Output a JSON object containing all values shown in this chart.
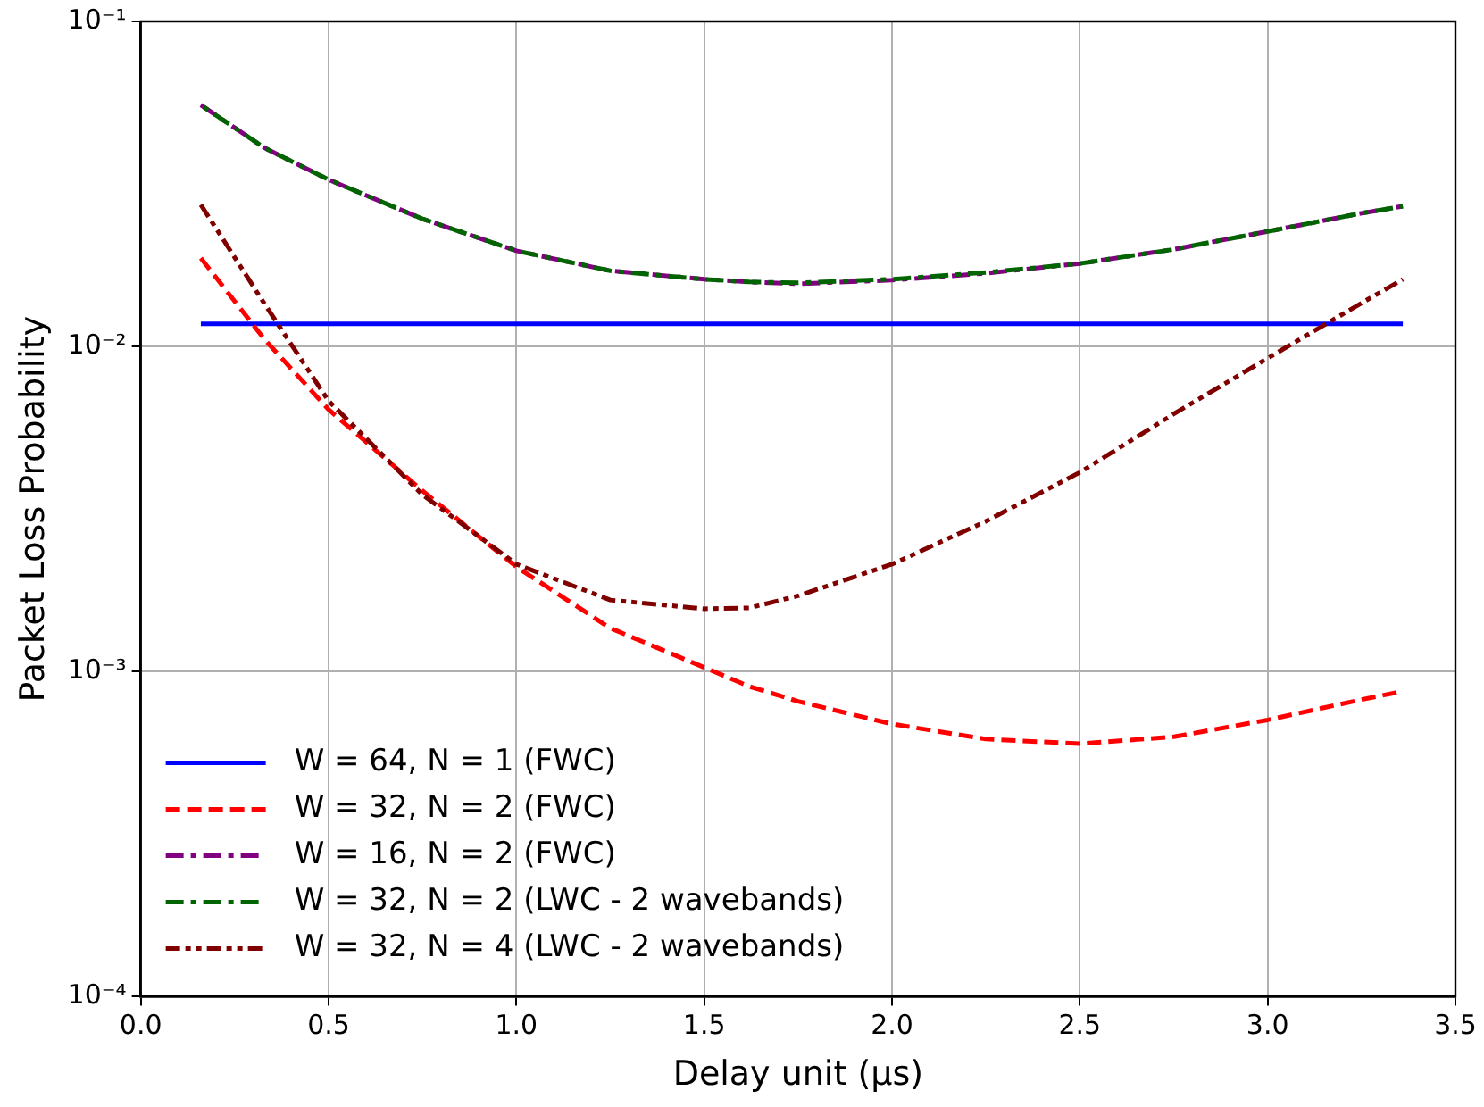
{
  "chart_data": {
    "type": "line",
    "xlabel": "Delay unit (μs)",
    "ylabel": "Packet Loss Probability",
    "log": "y",
    "grid": true,
    "legend": "bottom left",
    "marker": "none",
    "xlim": [
      0,
      3.5
    ],
    "xticks": [
      {
        "value": 0,
        "label": "0.0"
      },
      0.5,
      {
        "value": 1,
        "label": "1.0"
      },
      1.5,
      {
        "value": 2,
        "label": "2.0"
      },
      2.5,
      {
        "value": 3,
        "label": "3.0"
      },
      3.5
    ],
    "ylim": [
      0.0001,
      0.1
    ],
    "yticks": [
      {
        "value": 0.0001,
        "label": "10⁻⁴"
      },
      {
        "value": 0.001,
        "label": "10⁻³"
      },
      {
        "value": 0.01,
        "label": "10⁻²"
      },
      {
        "value": 0.1,
        "label": "10⁻¹"
      }
    ],
    "x": [
      0.16,
      0.33,
      0.5,
      0.75,
      1.0,
      1.25,
      1.5,
      1.62,
      1.75,
      2.0,
      2.25,
      2.5,
      2.75,
      3.0,
      3.25,
      3.36
    ],
    "series": [
      {
        "name": "W = 64, N = 1 (FWC)",
        "color": "#0000ff",
        "line_style": "solid",
        "values": [
          0.01175,
          0.01175,
          0.01175,
          0.01175,
          0.01175,
          0.01175,
          0.01175,
          0.01175,
          0.01175,
          0.01175,
          0.01175,
          0.01175,
          0.01175,
          0.01175,
          0.01175,
          0.01175
        ]
      },
      {
        "name": "W = 32, N = 2 (FWC)",
        "color": "#ff0000",
        "line_style": "dashed",
        "values": [
          0.0187,
          0.0105,
          0.0064,
          0.0036,
          0.0021,
          0.00136,
          0.00103,
          0.0009,
          0.00081,
          0.00069,
          0.00062,
          0.0006,
          0.00063,
          0.00071,
          0.00082,
          0.00087
        ]
      },
      {
        "name": "W = 16, N = 2 (FWC)",
        "color": "#800080",
        "line_style": "dashdot",
        "values": [
          0.0553,
          0.0408,
          0.0326,
          0.0247,
          0.0197,
          0.0171,
          0.0161,
          0.0158,
          0.0156,
          0.016,
          0.0168,
          0.018,
          0.0199,
          0.0226,
          0.0257,
          0.027
        ]
      },
      {
        "name": "W = 32, N = 2 (LWC - 2 wavebands)",
        "color": "#006400",
        "line_style": "dashdot",
        "values": [
          0.0553,
          0.0408,
          0.0326,
          0.0247,
          0.0197,
          0.0171,
          0.0161,
          0.0158,
          0.0157,
          0.0161,
          0.0169,
          0.018,
          0.0199,
          0.0226,
          0.0257,
          0.027
        ]
      },
      {
        "name": "W = 32, N = 4 (LWC - 2 wavebands)",
        "color": "#800000",
        "line_style": "dashdotdot",
        "values": [
          0.0273,
          0.0135,
          0.0068,
          0.0035,
          0.00214,
          0.00166,
          0.00156,
          0.00157,
          0.00171,
          0.00214,
          0.0029,
          0.0041,
          0.0062,
          0.0092,
          0.0136,
          0.0161
        ]
      }
    ]
  }
}
